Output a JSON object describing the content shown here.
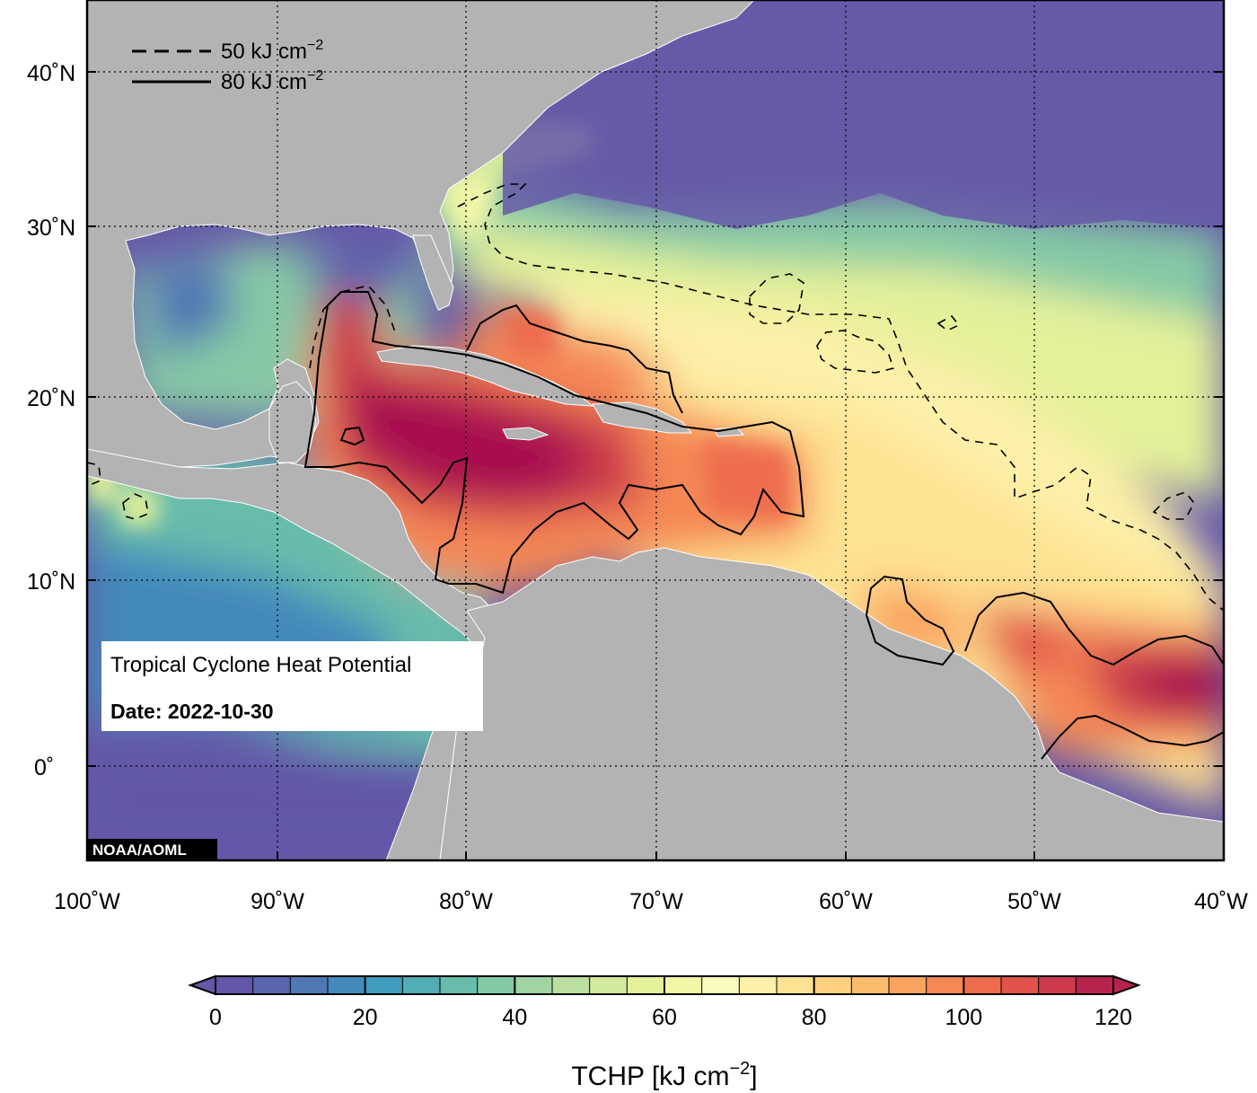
{
  "map": {
    "title": "Tropical Cyclone Heat Potential",
    "date_label": "Date: 2022-10-30",
    "credit": "NOAA/AOML",
    "lat_ticks": [
      "40˚N",
      "30˚N",
      "20˚N",
      "10˚N",
      "0˚"
    ],
    "lon_ticks": [
      "100˚W",
      "90˚W",
      "80˚W",
      "70˚W",
      "60˚W",
      "50˚W",
      "40˚W"
    ],
    "legend": [
      {
        "value": "50 kJ cm",
        "sup": "−2",
        "style": "dashed"
      },
      {
        "value": "80 kJ cm",
        "sup": "−2",
        "style": "solid"
      }
    ],
    "colors": {
      "land": "#b3b3b3",
      "low": "#6659a8",
      "high": "#a80f50"
    }
  },
  "colorbar": {
    "min": 0,
    "max": 120,
    "step": 5,
    "tick_labels": [
      "0",
      "20",
      "40",
      "60",
      "80",
      "100",
      "120"
    ],
    "title_main": "TCHP [kJ cm",
    "title_sup": "−2",
    "title_end": "]",
    "colors": [
      "#6257a8",
      "#5965ae",
      "#4f77b4",
      "#4389bc",
      "#3f9cbd",
      "#52adb5",
      "#68bcab",
      "#84c9a5",
      "#a0d5a3",
      "#badfa0",
      "#d2ea9e",
      "#e4f199",
      "#f1f7a7",
      "#fcfbbf",
      "#fdf0a8",
      "#fee293",
      "#fdd17f",
      "#fcbc6e",
      "#f9a35f",
      "#f58855",
      "#ee6d4d",
      "#e0524b",
      "#cc3a4c",
      "#b8234e"
    ]
  }
}
